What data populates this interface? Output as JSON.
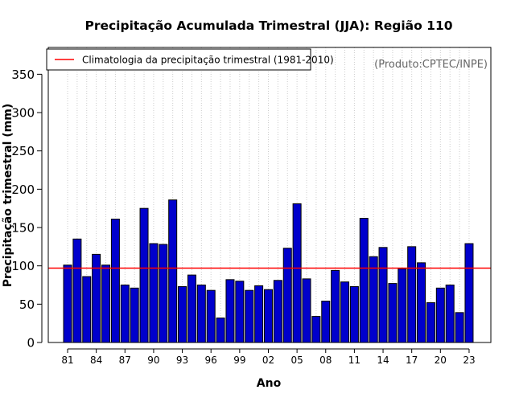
{
  "chart_data": {
    "type": "bar",
    "title": "Precipitação Acumulada Trimestral (JJA): Região 110",
    "xlabel": "Ano",
    "ylabel": "Precipitação trimestral (mm)",
    "ylim": [
      0,
      385
    ],
    "yticks": [
      0,
      50,
      100,
      150,
      200,
      250,
      300,
      350
    ],
    "grid": "vertical-dotted",
    "legend_position": "top-left",
    "legend": [
      "Climatologia da precipitação trimestral (1981-2010)"
    ],
    "source_label": "(Produto:CPTEC/INPE)",
    "climatology": 97,
    "tick_labels": [
      "81",
      "84",
      "87",
      "90",
      "93",
      "96",
      "99",
      "02",
      "05",
      "08",
      "11",
      "14",
      "17",
      "20",
      "23"
    ],
    "categories": [
      "1981",
      "1982",
      "1983",
      "1984",
      "1985",
      "1986",
      "1987",
      "1988",
      "1989",
      "1990",
      "1991",
      "1992",
      "1993",
      "1994",
      "1995",
      "1996",
      "1997",
      "1998",
      "1999",
      "2000",
      "2001",
      "2002",
      "2003",
      "2004",
      "2005",
      "2006",
      "2007",
      "2008",
      "2009",
      "2010",
      "2011",
      "2012",
      "2013",
      "2014",
      "2015",
      "2016",
      "2017",
      "2018",
      "2019",
      "2020",
      "2021",
      "2022",
      "2023"
    ],
    "values": [
      101,
      135,
      86,
      115,
      101,
      161,
      75,
      71,
      175,
      129,
      128,
      186,
      73,
      88,
      75,
      68,
      32,
      82,
      80,
      68,
      74,
      69,
      81,
      123,
      181,
      83,
      34,
      54,
      94,
      79,
      73,
      162,
      112,
      124,
      77,
      96,
      125,
      104,
      52,
      71,
      75,
      39,
      129
    ],
    "colors": {
      "bar": "#0000cc",
      "bar_stroke": "#000000",
      "climatology_line": "#ff0000",
      "grid": "#cccccc",
      "source_text": "#666666"
    }
  }
}
